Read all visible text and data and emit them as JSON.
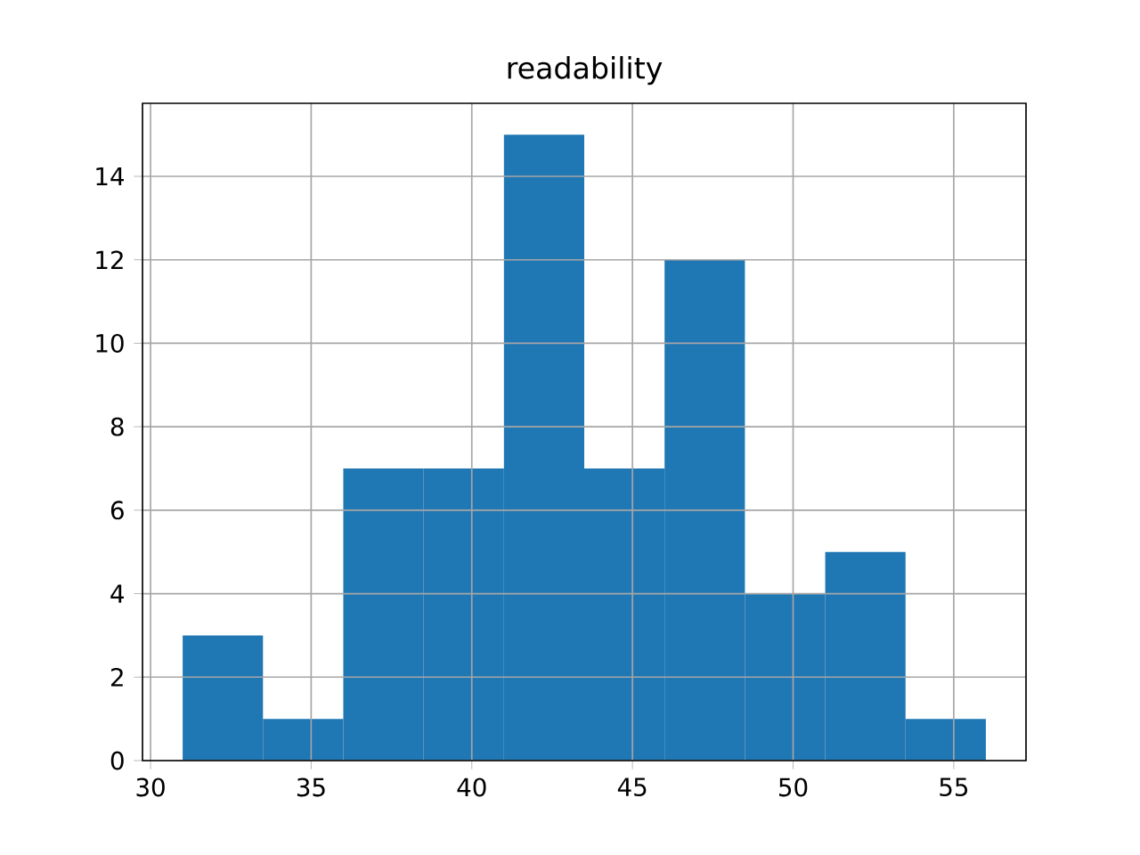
{
  "chart_data": {
    "type": "histogram",
    "title": "readability",
    "bins": [
      31,
      33.5,
      36,
      38.5,
      41,
      43.5,
      46,
      48.5,
      51,
      53.5,
      56
    ],
    "values": [
      3,
      1,
      7,
      7,
      15,
      7,
      12,
      4,
      5,
      1
    ],
    "color": "#1f77b4",
    "xlim": [
      29.75,
      57.25
    ],
    "ylim": [
      0,
      15.75
    ],
    "xticks": [
      30,
      35,
      40,
      45,
      50,
      55
    ],
    "yticks": [
      0,
      2,
      4,
      6,
      8,
      10,
      12,
      14
    ],
    "grid": true
  }
}
